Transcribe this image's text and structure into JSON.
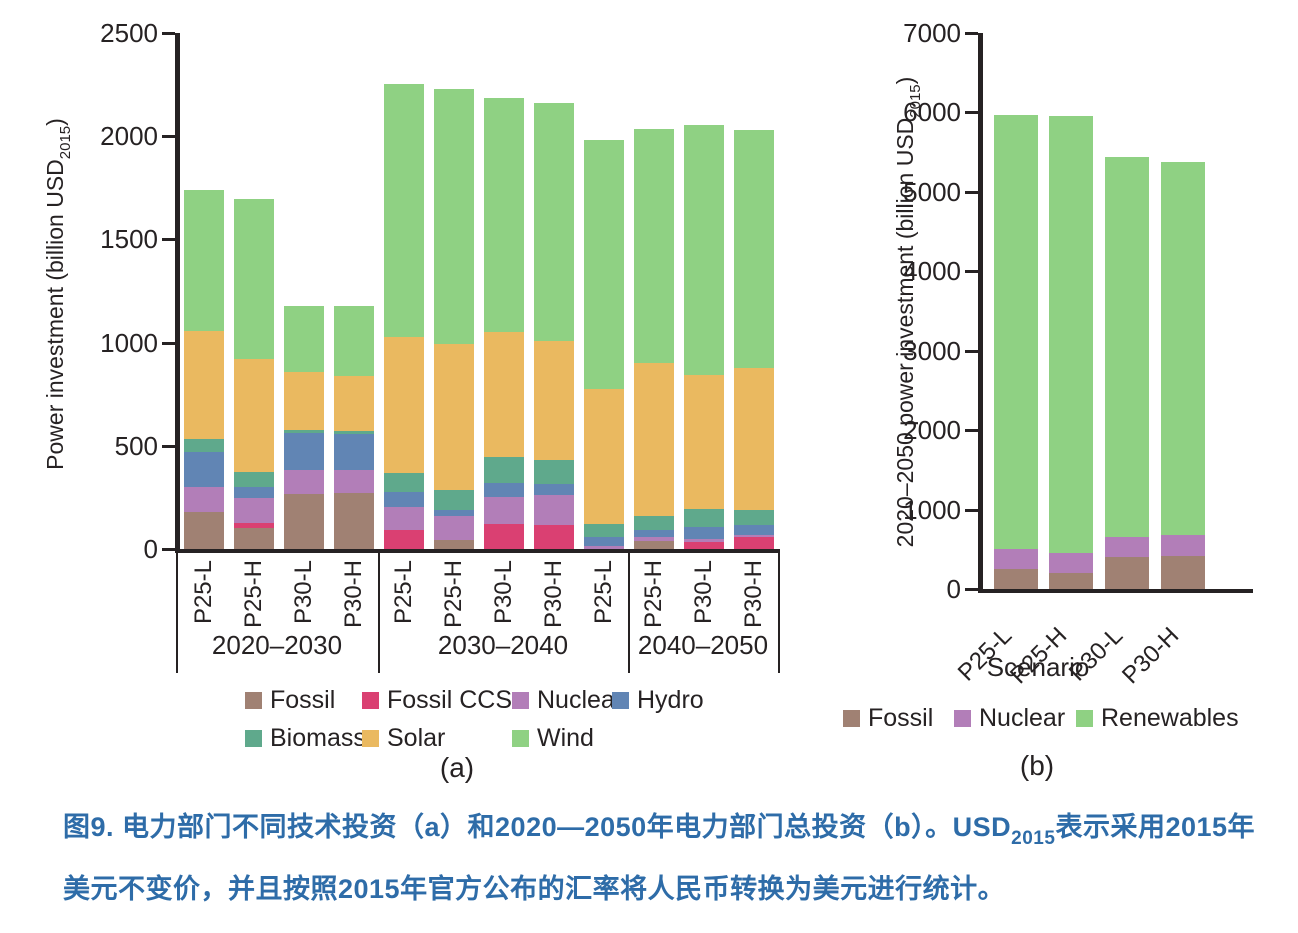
{
  "caption": {
    "before_sub": "图9. 电力部门不同技术投资（a）和2020—2050年电力部门总投资（b）。USD",
    "sub": "2015",
    "after_sub": "表示采用2015年美元不变价，并且按照2015年官方公布的汇率将人民币转换为美元进行统计。"
  },
  "colors": {
    "fossil": "#a08173",
    "fossil_ccs": "#da4072",
    "nuclear": "#b27eb8",
    "hydro": "#6185b4",
    "biomass": "#5fa98c",
    "solar": "#eab960",
    "wind": "#8fd183",
    "renewables": "#8fd183",
    "axis": "#262223",
    "caption_text": "#2e6ca8"
  },
  "chart_data": [
    {
      "id": "a",
      "type": "bar",
      "stacked": true,
      "panel_label": "(a)",
      "ylabel": {
        "text": "Power investment (billion USD",
        "sub": "2015",
        "after": ")"
      },
      "ylim": [
        0,
        2500
      ],
      "yticks": [
        0,
        500,
        1000,
        1500,
        2000,
        2500
      ],
      "grid": false,
      "legend_position": "bottom",
      "groups": [
        "2020–2030",
        "2030–2040",
        "2040–2050"
      ],
      "categories": [
        "P25-L",
        "P25-H",
        "P30-L",
        "P30-H"
      ],
      "series": [
        {
          "name": "Fossil",
          "color": "#a08173",
          "values": [
            180,
            100,
            265,
            270,
            0,
            45,
            0,
            0,
            0,
            40,
            0,
            0
          ]
        },
        {
          "name": "Fossil CCS",
          "color": "#da4072",
          "values": [
            0,
            25,
            0,
            0,
            90,
            0,
            120,
            115,
            0,
            0,
            35,
            60
          ]
        },
        {
          "name": "Nuclear",
          "color": "#b27eb8",
          "values": [
            120,
            120,
            120,
            115,
            115,
            115,
            130,
            145,
            15,
            20,
            15,
            10
          ]
        },
        {
          "name": "Hydro",
          "color": "#6185b4",
          "values": [
            170,
            55,
            175,
            170,
            70,
            30,
            70,
            55,
            45,
            30,
            55,
            45
          ]
        },
        {
          "name": "Biomass",
          "color": "#5fa98c",
          "values": [
            65,
            75,
            15,
            15,
            95,
            95,
            125,
            115,
            60,
            70,
            90,
            75
          ]
        },
        {
          "name": "Solar",
          "color": "#eab960",
          "values": [
            520,
            545,
            285,
            270,
            655,
            710,
            605,
            580,
            655,
            740,
            650,
            685
          ]
        },
        {
          "name": "Wind",
          "color": "#8fd183",
          "values": [
            685,
            775,
            315,
            335,
            1230,
            1235,
            1135,
            1150,
            1205,
            1135,
            1210,
            1155
          ]
        }
      ],
      "bar_totals": [
        1740,
        1695,
        1175,
        1175,
        2255,
        2230,
        2185,
        2160,
        1980,
        2035,
        2055,
        2030
      ]
    },
    {
      "id": "b",
      "type": "bar",
      "stacked": true,
      "panel_label": "(b)",
      "xlabel": "Scenario",
      "ylabel": {
        "text": "2020–2050 power investment (billion USD",
        "sub": "2015",
        "after": ")"
      },
      "ylim": [
        0,
        7000
      ],
      "yticks": [
        0,
        1000,
        2000,
        3000,
        4000,
        5000,
        6000,
        7000
      ],
      "grid": false,
      "legend_position": "bottom",
      "categories": [
        "P25-L",
        "P25-H",
        "P30-L",
        "P30-H"
      ],
      "series": [
        {
          "name": "Fossil",
          "color": "#a08173",
          "values": [
            250,
            200,
            405,
            410
          ]
        },
        {
          "name": "Nuclear",
          "color": "#b27eb8",
          "values": [
            250,
            255,
            250,
            265
          ]
        },
        {
          "name": "Renewables",
          "color": "#8fd183",
          "values": [
            5470,
            5495,
            4785,
            4705
          ]
        }
      ],
      "bar_totals": [
        5970,
        5950,
        5440,
        5380
      ]
    }
  ]
}
